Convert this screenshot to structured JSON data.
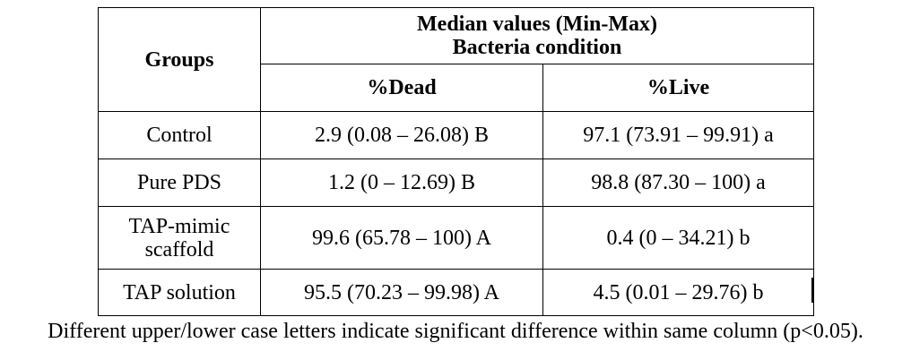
{
  "table": {
    "header": {
      "groups": "Groups",
      "median_title": "Median values (Min-Max)",
      "condition": "Bacteria condition",
      "col_dead": "%Dead",
      "col_live": "%Live"
    },
    "rows": [
      {
        "group": "Control",
        "dead": "2.9 (0.08 – 26.08) B",
        "live": "97.1 (73.91 – 99.91) a"
      },
      {
        "group": "Pure PDS",
        "dead": "1.2 (0 – 12.69) B",
        "live": "98.8 (87.30 – 100) a"
      },
      {
        "group": "TAP-mimic\nscaffold",
        "dead": "99.6 (65.78 – 100) A",
        "live": "0.4 (0 – 34.21) b"
      },
      {
        "group": "TAP solution",
        "dead": "95.5 (70.23 – 99.98) A",
        "live": "4.5 (0.01 – 29.76) b"
      }
    ]
  },
  "footnote": "Different upper/lower case letters indicate significant difference within same column (p<0.05)."
}
